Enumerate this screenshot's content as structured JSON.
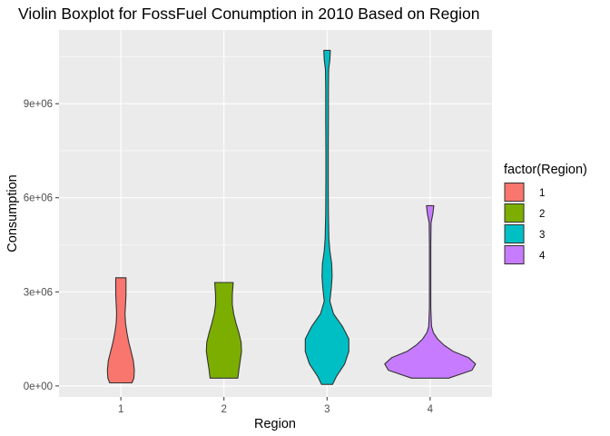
{
  "chart_data": {
    "type": "violin",
    "title": "Violin Boxplot for FossFuel Conumption in 2010 Based on Region",
    "xlabel": "Region",
    "ylabel": "Consumption",
    "categories": [
      "1",
      "2",
      "3",
      "4"
    ],
    "y_ticks": [
      0,
      3000000,
      6000000,
      9000000
    ],
    "y_tick_labels": [
      "0e+00",
      "3e+06",
      "6e+06",
      "9e+06"
    ],
    "ylim": [
      -350000,
      11350000
    ],
    "grid": true,
    "legend": {
      "title": "factor(Region)",
      "position": "right",
      "entries": [
        "1",
        "2",
        "3",
        "4"
      ]
    },
    "colors": [
      "#F8766D",
      "#7CAE00",
      "#00BFC4",
      "#C77CFF"
    ],
    "series": [
      {
        "name": "1",
        "profile": [
          {
            "y": 100000,
            "w": 0.24
          },
          {
            "y": 250000,
            "w": 0.28
          },
          {
            "y": 500000,
            "w": 0.29
          },
          {
            "y": 800000,
            "w": 0.27
          },
          {
            "y": 1100000,
            "w": 0.22
          },
          {
            "y": 1400000,
            "w": 0.17
          },
          {
            "y": 1700000,
            "w": 0.13
          },
          {
            "y": 2000000,
            "w": 0.1
          },
          {
            "y": 2300000,
            "w": 0.09
          },
          {
            "y": 2600000,
            "w": 0.1
          },
          {
            "y": 2900000,
            "w": 0.11
          },
          {
            "y": 3200000,
            "w": 0.11
          },
          {
            "y": 3450000,
            "w": 0.11
          }
        ]
      },
      {
        "name": "2",
        "profile": [
          {
            "y": 250000,
            "w": 0.3
          },
          {
            "y": 500000,
            "w": 0.32
          },
          {
            "y": 800000,
            "w": 0.35
          },
          {
            "y": 1100000,
            "w": 0.38
          },
          {
            "y": 1400000,
            "w": 0.37
          },
          {
            "y": 1700000,
            "w": 0.32
          },
          {
            "y": 2000000,
            "w": 0.26
          },
          {
            "y": 2300000,
            "w": 0.21
          },
          {
            "y": 2600000,
            "w": 0.18
          },
          {
            "y": 2900000,
            "w": 0.18
          },
          {
            "y": 3100000,
            "w": 0.19
          },
          {
            "y": 3300000,
            "w": 0.2
          }
        ]
      },
      {
        "name": "3",
        "profile": [
          {
            "y": 50000,
            "w": 0.12
          },
          {
            "y": 300000,
            "w": 0.2
          },
          {
            "y": 700000,
            "w": 0.38
          },
          {
            "y": 1100000,
            "w": 0.47
          },
          {
            "y": 1500000,
            "w": 0.47
          },
          {
            "y": 1900000,
            "w": 0.33
          },
          {
            "y": 2300000,
            "w": 0.14
          },
          {
            "y": 2700000,
            "w": 0.06
          },
          {
            "y": 3100000,
            "w": 0.09
          },
          {
            "y": 3500000,
            "w": 0.11
          },
          {
            "y": 3900000,
            "w": 0.1
          },
          {
            "y": 4300000,
            "w": 0.06
          },
          {
            "y": 4700000,
            "w": 0.04
          },
          {
            "y": 5500000,
            "w": 0.03
          },
          {
            "y": 6500000,
            "w": 0.025
          },
          {
            "y": 7500000,
            "w": 0.025
          },
          {
            "y": 8500000,
            "w": 0.03
          },
          {
            "y": 9500000,
            "w": 0.03
          },
          {
            "y": 10100000,
            "w": 0.035
          },
          {
            "y": 10400000,
            "w": 0.06
          },
          {
            "y": 10700000,
            "w": 0.07
          }
        ]
      },
      {
        "name": "4",
        "profile": [
          {
            "y": 250000,
            "w": 0.4
          },
          {
            "y": 500000,
            "w": 0.9
          },
          {
            "y": 700000,
            "w": 0.98
          },
          {
            "y": 900000,
            "w": 0.83
          },
          {
            "y": 1100000,
            "w": 0.5
          },
          {
            "y": 1300000,
            "w": 0.3
          },
          {
            "y": 1500000,
            "w": 0.16
          },
          {
            "y": 1700000,
            "w": 0.07
          },
          {
            "y": 1900000,
            "w": 0.03
          },
          {
            "y": 2500000,
            "w": 0.015
          },
          {
            "y": 3500000,
            "w": 0.015
          },
          {
            "y": 4500000,
            "w": 0.015
          },
          {
            "y": 5200000,
            "w": 0.02
          },
          {
            "y": 5500000,
            "w": 0.06
          },
          {
            "y": 5750000,
            "w": 0.08
          }
        ]
      }
    ]
  }
}
